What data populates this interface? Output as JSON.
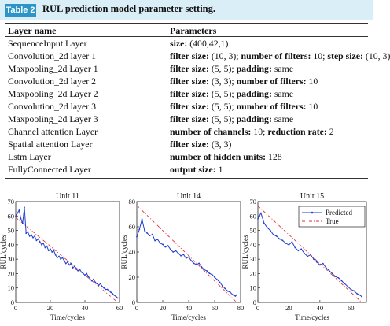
{
  "caption": {
    "label": "Table 2",
    "title": "RUL prediction model parameter setting."
  },
  "table": {
    "headers": [
      "Layer name",
      "Parameters"
    ],
    "rows": [
      {
        "layer": "SequenceInput Layer",
        "params": [
          [
            "b",
            "size:"
          ],
          [
            "n",
            " (400,42,1)"
          ]
        ]
      },
      {
        "layer": "Convolution_2d layer 1",
        "params": [
          [
            "b",
            "filter size:"
          ],
          [
            "n",
            " (10, 3); "
          ],
          [
            "b",
            "number of filters:"
          ],
          [
            "n",
            " 10; "
          ],
          [
            "b",
            "step size:"
          ],
          [
            "n",
            " (10, 3)"
          ]
        ]
      },
      {
        "layer": "Maxpooling_2d Layer 1",
        "params": [
          [
            "b",
            "filter size:"
          ],
          [
            "n",
            " (5, 5); "
          ],
          [
            "b",
            "padding:"
          ],
          [
            "n",
            " same"
          ]
        ]
      },
      {
        "layer": "Convolution_2d layer 2",
        "params": [
          [
            "b",
            "filter size:"
          ],
          [
            "n",
            " (3, 3); "
          ],
          [
            "b",
            "number of filters:"
          ],
          [
            "n",
            " 10"
          ]
        ]
      },
      {
        "layer": "Maxpooling_2d Layer 2",
        "params": [
          [
            "b",
            "filter size:"
          ],
          [
            "n",
            " (5, 5); "
          ],
          [
            "b",
            "padding:"
          ],
          [
            "n",
            " same"
          ]
        ]
      },
      {
        "layer": "Convolution_2d layer 3",
        "params": [
          [
            "b",
            "filter size:"
          ],
          [
            "n",
            " (5, 5); "
          ],
          [
            "b",
            "number of filters:"
          ],
          [
            "n",
            " 10"
          ]
        ]
      },
      {
        "layer": "Maxpooling_2d Layer 3",
        "params": [
          [
            "b",
            "filter size:"
          ],
          [
            "n",
            " (5, 5); "
          ],
          [
            "b",
            "padding:"
          ],
          [
            "n",
            " same"
          ]
        ]
      },
      {
        "layer": "Channel attention Layer",
        "params": [
          [
            "b",
            "number of channels:"
          ],
          [
            "n",
            " 10; "
          ],
          [
            "b",
            "reduction rate:"
          ],
          [
            "n",
            " 2"
          ]
        ]
      },
      {
        "layer": "Spatial attention Layer",
        "params": [
          [
            "b",
            "filter size:"
          ],
          [
            "n",
            " (3, 3)"
          ]
        ]
      },
      {
        "layer": "Lstm Layer",
        "params": [
          [
            "b",
            "number of hidden units:"
          ],
          [
            "n",
            " 128"
          ]
        ]
      },
      {
        "layer": "FullyConnected Layer",
        "params": [
          [
            "b",
            "output size:"
          ],
          [
            "n",
            " 1"
          ]
        ]
      }
    ]
  },
  "colors": {
    "caption_bg": "#d9eef6",
    "caption_label_bg": "#2a95c6",
    "predicted": "#1f3fd0",
    "true": "#e0303a"
  },
  "chart_data": [
    {
      "type": "line",
      "title": "Unit 11",
      "xlabel": "Time/cycles",
      "ylabel": "RUL/cycles",
      "xlim": [
        0,
        60
      ],
      "ylim": [
        0,
        70
      ],
      "xticks": [
        0,
        20,
        40,
        60
      ],
      "yticks": [
        0,
        10,
        20,
        30,
        40,
        50,
        60,
        70
      ],
      "series": [
        {
          "name": "True",
          "x": [
            0,
            59
          ],
          "values": [
            59,
            0
          ]
        },
        {
          "name": "Predicted",
          "x": [
            0,
            1,
            2,
            3,
            4,
            5,
            6,
            7,
            8,
            9,
            10,
            11,
            12,
            13,
            14,
            15,
            16,
            17,
            18,
            19,
            20,
            21,
            22,
            23,
            24,
            25,
            26,
            27,
            28,
            29,
            30,
            31,
            32,
            33,
            34,
            35,
            36,
            37,
            38,
            39,
            40,
            41,
            42,
            43,
            44,
            45,
            46,
            47,
            48,
            49,
            50,
            51,
            52,
            53,
            54,
            55,
            56,
            57,
            58,
            59
          ],
          "values": [
            60,
            62,
            64,
            58,
            55,
            66,
            48,
            49,
            46,
            47,
            45,
            46,
            43,
            44,
            42,
            40,
            41,
            38,
            39,
            36,
            37,
            35,
            36,
            33,
            31,
            32,
            30,
            31,
            29,
            27,
            28,
            26,
            27,
            24,
            25,
            23,
            22,
            23,
            21,
            20,
            19,
            20,
            18,
            16,
            15,
            16,
            14,
            13,
            12,
            13,
            11,
            10,
            9,
            9,
            8,
            7,
            6,
            5,
            4,
            3
          ]
        }
      ]
    },
    {
      "type": "line",
      "title": "Unit 14",
      "xlabel": "Time/cycles",
      "ylabel": "RUL/cycles",
      "xlim": [
        0,
        80
      ],
      "ylim": [
        0,
        80
      ],
      "xticks": [
        0,
        20,
        40,
        60,
        80
      ],
      "yticks": [
        0,
        20,
        40,
        60,
        80
      ],
      "series": [
        {
          "name": "True",
          "x": [
            0,
            77
          ],
          "values": [
            77,
            0
          ]
        },
        {
          "name": "Predicted",
          "x": [
            0,
            2,
            4,
            6,
            8,
            10,
            12,
            14,
            16,
            18,
            20,
            22,
            24,
            26,
            28,
            30,
            32,
            34,
            36,
            38,
            40,
            42,
            44,
            46,
            48,
            50,
            52,
            54,
            56,
            58,
            60,
            62,
            64,
            66,
            68,
            70,
            72,
            74,
            76,
            77
          ],
          "values": [
            52,
            58,
            66,
            57,
            55,
            53,
            54,
            49,
            50,
            47,
            46,
            44,
            45,
            42,
            40,
            41,
            39,
            37,
            38,
            35,
            36,
            33,
            31,
            30,
            31,
            28,
            26,
            25,
            23,
            22,
            20,
            18,
            16,
            13,
            11,
            9,
            8,
            6,
            5,
            6
          ]
        }
      ]
    },
    {
      "type": "line",
      "title": "Unit 15",
      "xlabel": "Time/cycles",
      "ylabel": "RUL/cycles",
      "xlim": [
        0,
        70
      ],
      "ylim": [
        0,
        70
      ],
      "xticks": [
        0,
        20,
        40,
        60
      ],
      "yticks": [
        0,
        10,
        20,
        30,
        40,
        50,
        60,
        70
      ],
      "legend": "top-right",
      "series": [
        {
          "name": "Predicted",
          "x": [
            0,
            2,
            4,
            6,
            8,
            10,
            12,
            14,
            16,
            18,
            20,
            22,
            24,
            26,
            28,
            30,
            32,
            34,
            36,
            38,
            40,
            42,
            44,
            46,
            48,
            50,
            52,
            54,
            56,
            58,
            60,
            62,
            64,
            66,
            67
          ],
          "values": [
            58,
            62,
            55,
            52,
            50,
            47,
            46,
            44,
            43,
            41,
            40,
            42,
            38,
            36,
            37,
            34,
            32,
            33,
            30,
            28,
            26,
            27,
            24,
            22,
            20,
            18,
            17,
            15,
            13,
            11,
            9,
            8,
            6,
            5,
            4
          ]
        },
        {
          "name": "True",
          "x": [
            0,
            67
          ],
          "values": [
            67,
            0
          ]
        }
      ]
    }
  ]
}
